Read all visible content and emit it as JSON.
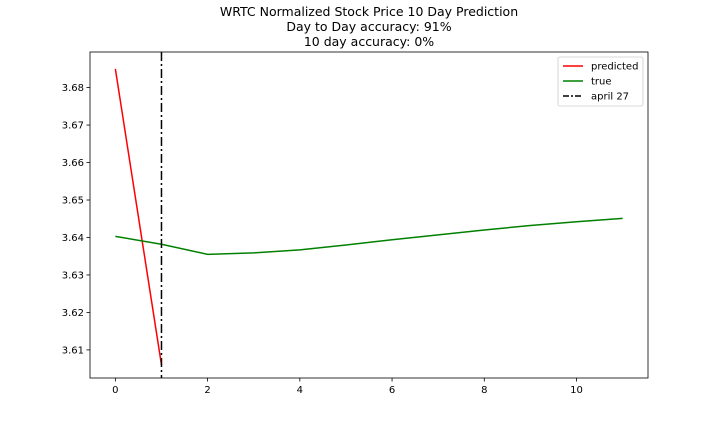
{
  "chart_data": {
    "type": "line",
    "title": [
      "WRTC Normalized Stock Price 10 Day Prediction",
      "Day to Day accuracy: 91%",
      "10 day accuracy: 0%"
    ],
    "xlabel": "",
    "ylabel": "",
    "xlim": [
      -0.55,
      11.55
    ],
    "ylim": [
      3.6025,
      3.6895
    ],
    "x_ticks": [
      0,
      2,
      4,
      6,
      8,
      10
    ],
    "y_ticks": [
      3.61,
      3.62,
      3.63,
      3.64,
      3.65,
      3.66,
      3.67,
      3.68
    ],
    "grid": false,
    "legend_position": "top-right",
    "series": [
      {
        "name": "predicted",
        "color": "#ff0000",
        "style": "solid",
        "x": [
          0,
          1
        ],
        "y": [
          3.685,
          3.606
        ]
      },
      {
        "name": "true",
        "color": "#008000",
        "style": "solid",
        "x": [
          0,
          1,
          2,
          3,
          4,
          5,
          6,
          7,
          8,
          9,
          10,
          11
        ],
        "y": [
          3.6403,
          3.6382,
          3.6355,
          3.6359,
          3.6367,
          3.638,
          3.6394,
          3.6407,
          3.642,
          3.6432,
          3.6442,
          3.6451
        ]
      },
      {
        "name": "april 27",
        "color": "#000000",
        "style": "dashdot",
        "vline_x": 1
      }
    ]
  }
}
